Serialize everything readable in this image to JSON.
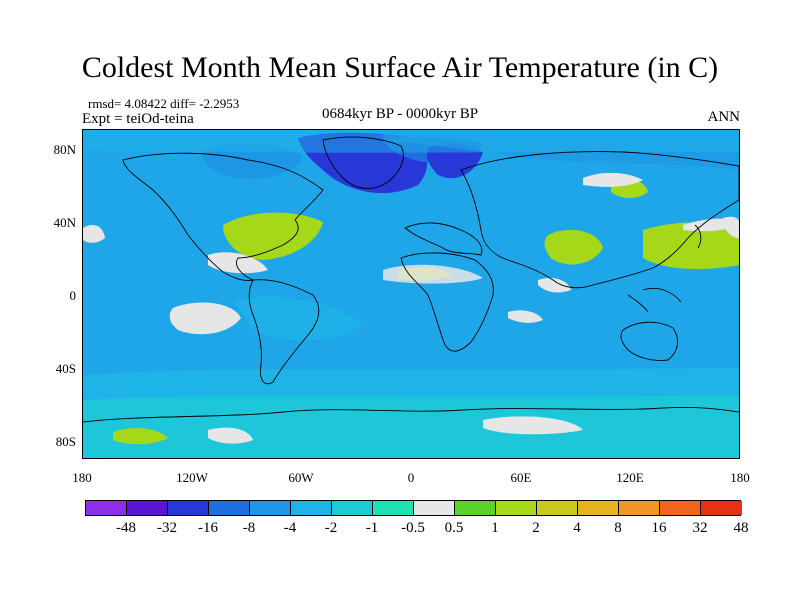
{
  "title": "Coldest Month Mean Surface Air Temperature (in C)",
  "stats_text": "rmsd= 4.08422 diff= -2.2953",
  "expt_label": "Expt = teiOd-teina",
  "period_label": "0684kyr BP - 0000kyr BP",
  "season_label": "ANN",
  "map": {
    "projection": "cylindrical equidistant",
    "lon_range": [
      -180,
      180
    ],
    "lat_range": [
      -90,
      90
    ],
    "background_color": "#1ea6e8"
  },
  "axes": {
    "lat_ticks": [
      {
        "label": "80N",
        "value": 80
      },
      {
        "label": "40N",
        "value": 40
      },
      {
        "label": "0",
        "value": 0
      },
      {
        "label": "40S",
        "value": -40
      },
      {
        "label": "80S",
        "value": -80
      }
    ],
    "lon_ticks": [
      {
        "label": "180",
        "value": -180
      },
      {
        "label": "120W",
        "value": -120
      },
      {
        "label": "60W",
        "value": -60
      },
      {
        "label": "0",
        "value": 0
      },
      {
        "label": "60E",
        "value": 60
      },
      {
        "label": "120E",
        "value": 120
      },
      {
        "label": "180",
        "value": 180
      }
    ]
  },
  "colorbar": {
    "colors": [
      "#8c2fe6",
      "#5a14d2",
      "#2838d8",
      "#1e6ee0",
      "#1e96e6",
      "#1eb4e8",
      "#1ecdd4",
      "#1ee1b4",
      "#e6e6e6",
      "#5ad22a",
      "#a6d81a",
      "#c8c820",
      "#e6b41e",
      "#f09628",
      "#f0641e",
      "#e63214"
    ],
    "labels": [
      "-48",
      "-32",
      "-16",
      "-8",
      "-4",
      "-2",
      "-1",
      "-0.5",
      "0.5",
      "1",
      "2",
      "4",
      "8",
      "16",
      "32",
      "48"
    ]
  }
}
